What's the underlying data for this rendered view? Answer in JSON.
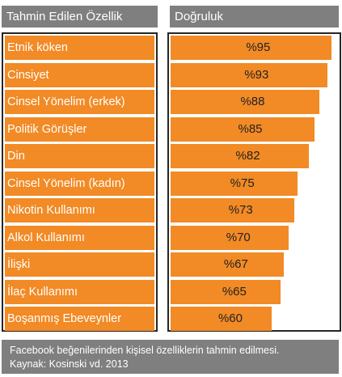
{
  "header": {
    "left_label": "Tahmin Edilen Özellik",
    "right_label": "Doğruluk"
  },
  "chart_data": {
    "type": "bar",
    "orientation": "horizontal",
    "categories": [
      "Etnik köken",
      "Cinsiyet",
      "Cinsel Yönelim (erkek)",
      "Politik Görüşler",
      "Din",
      "Cinsel Yönelim (kadın)",
      "Nikotin Kullanımı",
      "Alkol Kullanımı",
      "İlişki",
      "İlaç Kullanımı",
      "Boşanmış Ebeveynler"
    ],
    "values": [
      95,
      93,
      88,
      85,
      82,
      75,
      73,
      70,
      67,
      65,
      60
    ],
    "value_labels": [
      "%95",
      "%93",
      "%88",
      "%85",
      "%82",
      "%75",
      "%73",
      "%70",
      "%67",
      "%65",
      "%60"
    ],
    "bar_color": "#f28a25",
    "header_color": "#7f7f7f"
  },
  "footer": {
    "line1": "Facebook beğenilerinden kişisel özelliklerin tahmin edilmesi.",
    "line2": "Kaynak: Kosinski vd. 2013"
  }
}
